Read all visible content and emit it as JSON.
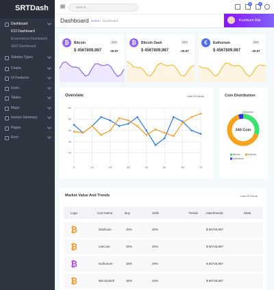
{
  "sidebar": {
    "logo": "SRTDash",
    "menu": [
      {
        "label": "Dashboard",
        "items": [
          "ICO Dashboard",
          "Ecommerce Dashboard",
          "SEO Dashboard"
        ]
      },
      {
        "label": "Sidebar Types"
      },
      {
        "label": "Charts"
      },
      {
        "label": "UI Features"
      },
      {
        "label": "Icons"
      },
      {
        "label": "Tables"
      },
      {
        "label": "Maps"
      },
      {
        "label": "Invoice Summary"
      },
      {
        "label": "Pages"
      },
      {
        "label": "Error"
      }
    ]
  },
  "header": {
    "search_placeholder": "Search...",
    "badges": [
      3,
      2
    ]
  },
  "title_bar": {
    "title": "Dashboard",
    "home": "Home",
    "separator": "/",
    "current": "Dashboard",
    "user": "Kumkum Rai"
  },
  "coins": [
    {
      "icon": "₿",
      "icon_color": "#8f63f6",
      "chart_color": "#8f63f6",
      "name": "Bitcoin",
      "period": "24H",
      "price": "$ 4567809,987",
      "change": "-45.87"
    },
    {
      "icon": "₿",
      "icon_color": "#8f63f6",
      "chart_color": "#f4bd3b",
      "name": "Bitcoin Dash",
      "period": "24H",
      "price": "$ 4567809,987",
      "change": "-45.87"
    },
    {
      "icon": "€",
      "icon_color": "#4f6ff0",
      "chart_color": "#f4bd3b",
      "name": "Euthorium",
      "period": "24H",
      "price": "$ 4567809,987",
      "change": "-45.87"
    }
  ],
  "overview": {
    "title": "Overview",
    "period": "Last 24 Hours",
    "x": [
      0,
      5,
      10,
      15,
      20,
      25,
      30,
      35,
      40,
      45,
      50,
      55,
      60,
      65,
      70
    ],
    "xlim": [
      0,
      70
    ],
    "xticks": [
      0,
      10,
      20,
      30,
      40,
      50,
      60,
      70
    ],
    "ylim": [
      10,
      60
    ],
    "yticks": [
      20,
      30,
      40,
      50,
      60
    ],
    "grid": true,
    "series": [
      {
        "color": "#2f7fd8",
        "values": [
          45,
          38,
          44,
          52,
          49,
          44,
          46,
          52,
          40,
          27,
          33,
          52,
          48,
          40,
          37
        ]
      },
      {
        "color": "#f0a030",
        "values": [
          39,
          38,
          44,
          36,
          40,
          51,
          49,
          44,
          36,
          41,
          38,
          35,
          47,
          52,
          55
        ]
      }
    ]
  },
  "distribution": {
    "title": "Coin Distribution",
    "center_label": "340 Coin",
    "top_label": "Euthorium",
    "slices": [
      {
        "name": "Bitcoin",
        "color": "#39e36c",
        "value": 30
      },
      {
        "name": "Litecoin",
        "color": "#f7a21b",
        "value": 65
      },
      {
        "name": "Euthorium",
        "color": "#3b2ee6",
        "value": 5
      }
    ]
  },
  "market": {
    "title": "Market Value And Trends",
    "period": "Last 24 Hours",
    "columns": [
      "Logo",
      "Coin Name",
      "Buy",
      "Sells",
      "Trends",
      "Attachments",
      "Stats"
    ],
    "rows": [
      {
        "icon": "₿",
        "icon_color": "#f7931a",
        "coin": "Dashcoin",
        "buy": "30%",
        "sell": "20%",
        "attachments": "$ 56746,857"
      },
      {
        "icon": "₿",
        "icon_color": "#f7931a",
        "coin": "LiteCoin",
        "buy": "30%",
        "sell": "20%",
        "attachments": "$ 56746,857"
      },
      {
        "icon": "₿",
        "icon_color": "#b43fe0",
        "coin": "Euthorium",
        "buy": "30%",
        "sell": "20%",
        "attachments": "$ 56746,857"
      },
      {
        "icon": "₿",
        "icon_color": "#f7931a",
        "coin": "Bitcoindash",
        "buy": "30%",
        "sell": "20%",
        "attachments": "$ 56746,857"
      }
    ]
  }
}
